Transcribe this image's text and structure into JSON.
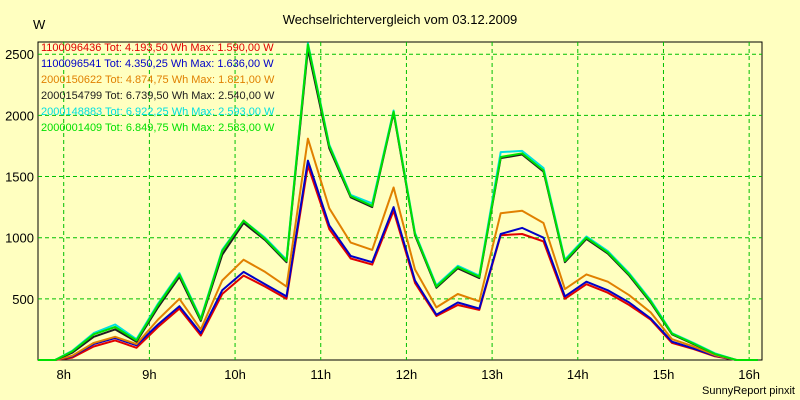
{
  "chart_data": {
    "type": "line",
    "title": "Wechselrichtervergleich vom 03.12.2009",
    "ylabel": "W",
    "xlabel": "",
    "ylim": [
      0,
      2600
    ],
    "xlim": [
      7.7,
      16.15
    ],
    "x_ticks": [
      {
        "value": 8,
        "label": "8h"
      },
      {
        "value": 9,
        "label": "9h"
      },
      {
        "value": 10,
        "label": "10h"
      },
      {
        "value": 11,
        "label": "11h"
      },
      {
        "value": 12,
        "label": "12h"
      },
      {
        "value": 13,
        "label": "13h"
      },
      {
        "value": 14,
        "label": "14h"
      },
      {
        "value": 15,
        "label": "15h"
      },
      {
        "value": 16,
        "label": "16h"
      }
    ],
    "y_ticks": [
      500,
      1000,
      1500,
      2000,
      2500
    ],
    "grid": true,
    "legend_position": "top-left",
    "credit": "SunnyReport pinxit",
    "x": [
      7.7,
      7.9,
      8.1,
      8.35,
      8.6,
      8.85,
      9.1,
      9.35,
      9.6,
      9.85,
      10.1,
      10.35,
      10.6,
      10.85,
      11.1,
      11.35,
      11.6,
      11.85,
      12.1,
      12.35,
      12.6,
      12.85,
      13.1,
      13.35,
      13.6,
      13.85,
      14.1,
      14.35,
      14.6,
      14.85,
      15.1,
      15.35,
      15.6,
      15.85,
      16.1
    ],
    "series": [
      {
        "name": "1100096436",
        "label": "1100096436 Tot: 4.193,50 Wh Max: 1.590,00 W",
        "color": "#E00000",
        "values": [
          0,
          0,
          20,
          110,
          160,
          100,
          270,
          420,
          200,
          540,
          690,
          600,
          500,
          1590,
          1070,
          830,
          780,
          1220,
          630,
          360,
          450,
          410,
          1020,
          1030,
          970,
          500,
          620,
          550,
          450,
          330,
          140,
          90,
          30,
          0,
          0
        ]
      },
      {
        "name": "1100096541",
        "label": "1100096541 Tot: 4.350,25 Wh Max: 1.636,00 W",
        "color": "#0000C8",
        "values": [
          0,
          0,
          30,
          130,
          180,
          120,
          290,
          440,
          220,
          570,
          720,
          620,
          520,
          1630,
          1100,
          850,
          800,
          1250,
          650,
          370,
          470,
          420,
          1030,
          1080,
          1000,
          520,
          640,
          570,
          470,
          340,
          150,
          95,
          35,
          0,
          0
        ]
      },
      {
        "name": "2000150622",
        "label": "2000150622 Tot: 4.874,75 Wh Max: 1.821,00 W",
        "color": "#E08000",
        "values": [
          0,
          0,
          35,
          140,
          190,
          130,
          330,
          500,
          250,
          650,
          820,
          720,
          600,
          1810,
          1240,
          960,
          900,
          1410,
          740,
          430,
          540,
          480,
          1200,
          1220,
          1120,
          580,
          700,
          640,
          530,
          390,
          170,
          110,
          40,
          0,
          0
        ]
      },
      {
        "name": "2000154799",
        "label": "2000154799 Tot: 6.739,50 Wh Max: 2.540,00 W",
        "color": "#202020",
        "values": [
          0,
          0,
          60,
          190,
          250,
          150,
          430,
          680,
          320,
          860,
          1120,
          980,
          800,
          2540,
          1730,
          1330,
          1250,
          2020,
          1020,
          590,
          750,
          670,
          1650,
          1680,
          1540,
          800,
          990,
          870,
          690,
          470,
          210,
          130,
          50,
          0,
          0
        ]
      },
      {
        "name": "2000148883",
        "label": "2000148883 Tot: 6.922,25 Wh Max: 2.593,00 W",
        "color": "#00E0E0",
        "values": [
          0,
          0,
          75,
          220,
          290,
          170,
          460,
          710,
          340,
          900,
          1140,
          1000,
          820,
          2590,
          1760,
          1350,
          1280,
          2040,
          1040,
          610,
          770,
          690,
          1700,
          1710,
          1570,
          820,
          1010,
          890,
          710,
          490,
          220,
          140,
          55,
          0,
          0
        ]
      },
      {
        "name": "2000001409",
        "label": "2000001409 Tot: 6.849,75 Wh Max: 2.583,00 W",
        "color": "#00E000",
        "values": [
          0,
          0,
          70,
          210,
          270,
          160,
          450,
          700,
          330,
          890,
          1140,
          990,
          810,
          2580,
          1750,
          1340,
          1260,
          2030,
          1030,
          600,
          760,
          680,
          1660,
          1690,
          1550,
          810,
          1000,
          880,
          700,
          480,
          215,
          135,
          50,
          0,
          0
        ]
      }
    ]
  }
}
